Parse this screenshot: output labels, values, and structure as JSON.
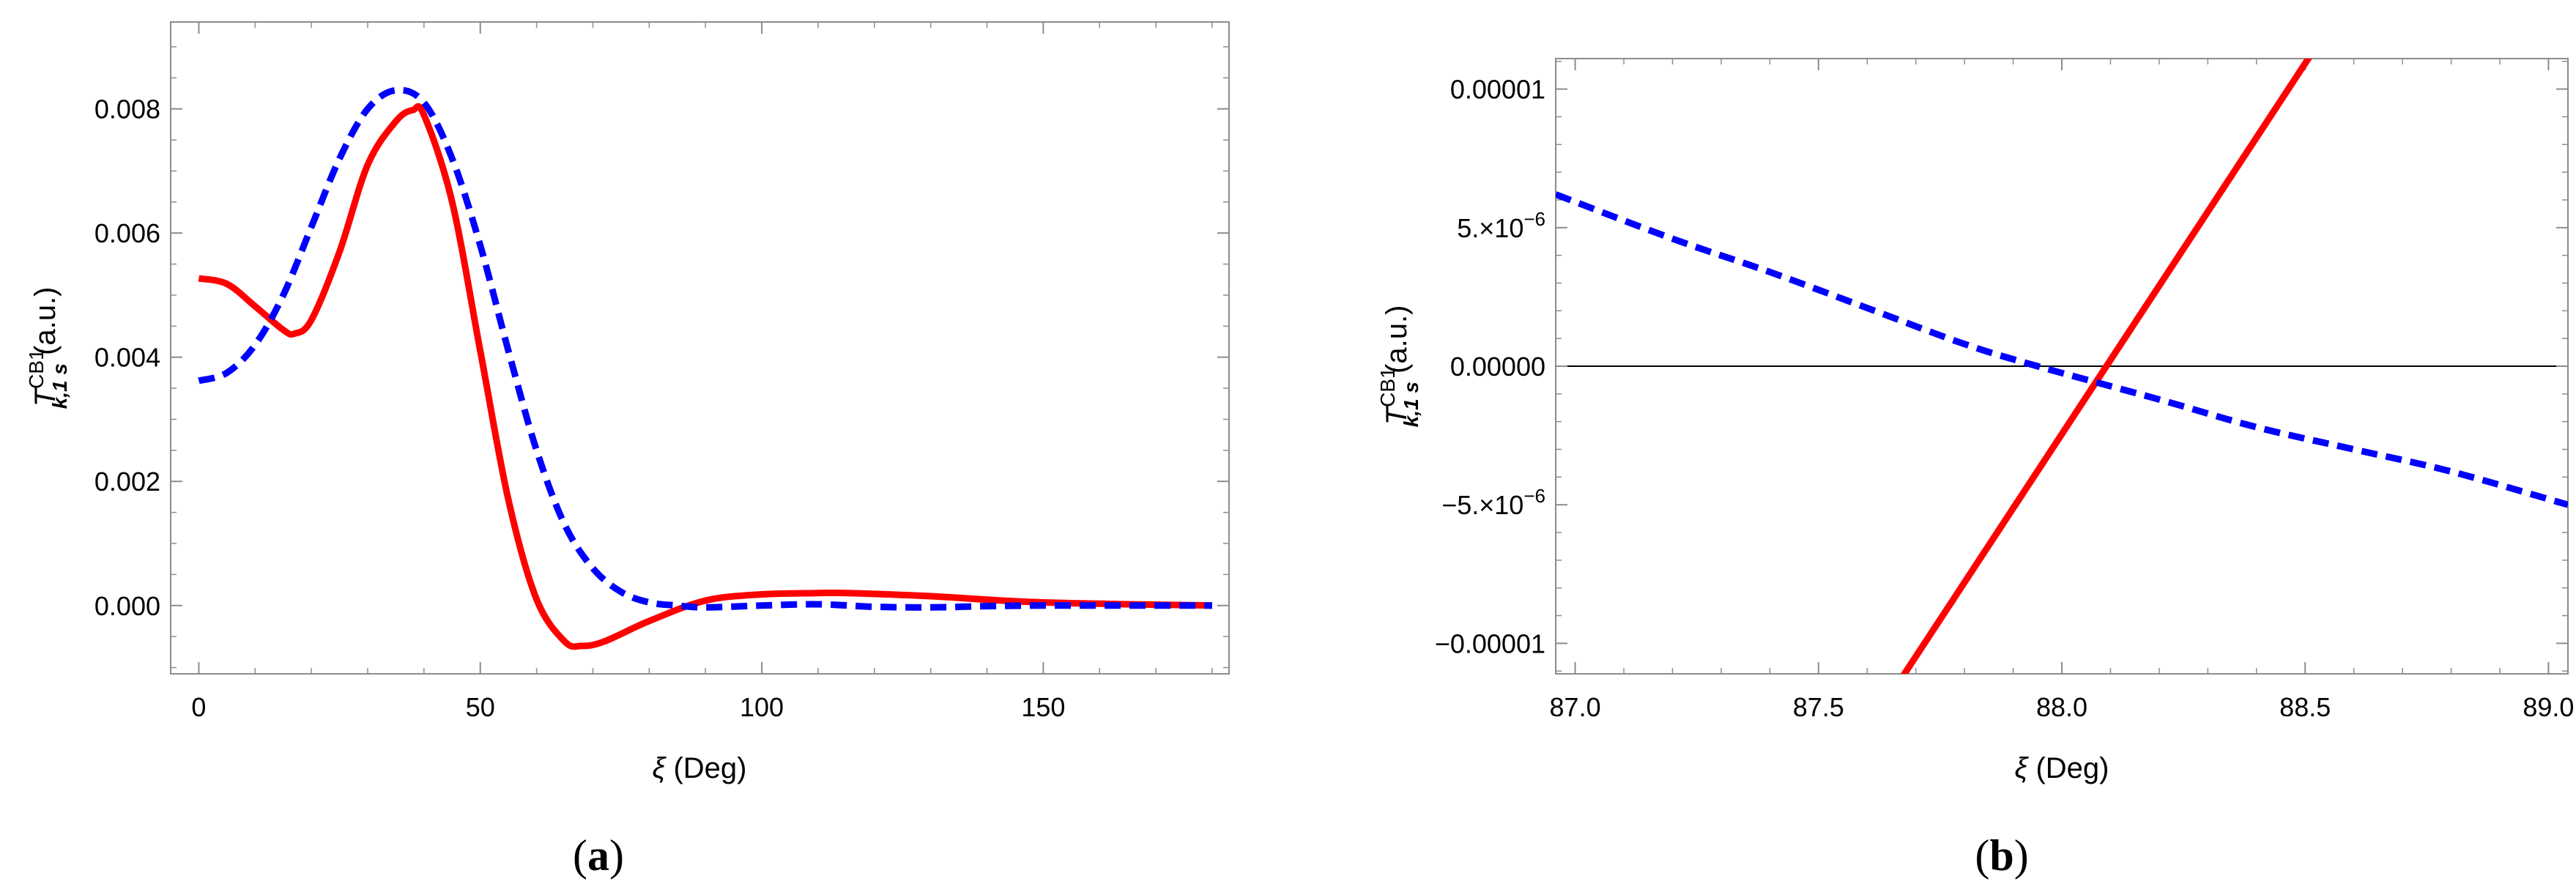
{
  "panels": [
    {
      "label_open": "(",
      "label_letter": "a",
      "label_close": ")",
      "xlabel_symbol": "ξ",
      "xlabel_unit": " (Deg)",
      "ylabel_T": "T",
      "ylabel_sub": "k,1 s",
      "ylabel_sup": "CB1",
      "ylabel_unit": " (a.u.)",
      "xticks": [
        {
          "value": 0,
          "label": "0"
        },
        {
          "value": 50,
          "label": "50"
        },
        {
          "value": 100,
          "label": "100"
        },
        {
          "value": 150,
          "label": "150"
        }
      ],
      "yticks": [
        {
          "value": 0.0,
          "label": "0.000"
        },
        {
          "value": 0.002,
          "label": "0.002"
        },
        {
          "value": 0.004,
          "label": "0.004"
        },
        {
          "value": 0.006,
          "label": "0.006"
        },
        {
          "value": 0.008,
          "label": "0.008"
        }
      ]
    },
    {
      "label_open": "(",
      "label_letter": "b",
      "label_close": ")",
      "xlabel_symbol": "ξ",
      "xlabel_unit": " (Deg)",
      "ylabel_T": "T",
      "ylabel_sub": "k,1 s",
      "ylabel_sup": "CB1",
      "ylabel_unit": " (a.u.)",
      "xticks": [
        {
          "value": 87.0,
          "label": "87.0"
        },
        {
          "value": 87.5,
          "label": "87.5"
        },
        {
          "value": 88.0,
          "label": "88.0"
        },
        {
          "value": 88.5,
          "label": "88.5"
        },
        {
          "value": 89.0,
          "label": "89.0"
        }
      ],
      "yticks": [
        {
          "value": -1e-05,
          "label": "−0.00001"
        },
        {
          "value": -5e-06,
          "label": "−5.×10",
          "exp": "−6"
        },
        {
          "value": 0.0,
          "label": "0.00000"
        },
        {
          "value": 5e-06,
          "label": "5.×10",
          "exp": "−6"
        },
        {
          "value": 1e-05,
          "label": "0.00001"
        }
      ]
    }
  ],
  "chart_data": [
    {
      "type": "line",
      "xlim": [
        -5,
        183
      ],
      "ylim": [
        -0.0011,
        0.0094
      ],
      "grid": false,
      "series": [
        {
          "color": "#ff0000",
          "dash": "solid",
          "x": [
            0,
            5,
            10,
            15,
            17,
            20,
            25,
            30,
            35,
            38,
            40,
            45,
            50,
            55,
            60,
            65,
            68,
            72,
            80,
            90,
            100,
            110,
            115,
            130,
            150,
            180
          ],
          "y": [
            0.00527,
            0.00518,
            0.00482,
            0.00444,
            0.00438,
            0.0046,
            0.0057,
            0.0071,
            0.0078,
            0.00798,
            0.0079,
            0.0065,
            0.0041,
            0.0017,
            0.0001,
            -0.00058,
            -0.00065,
            -0.00058,
            -0.00025,
            8e-05,
            0.00018,
            0.0002,
            0.0002,
            0.00015,
            5e-05,
            0.0
          ]
        },
        {
          "color": "#0000ff",
          "dash": "dashed",
          "x": [
            0,
            5,
            10,
            15,
            20,
            25,
            30,
            35,
            40,
            45,
            50,
            55,
            60,
            65,
            70,
            75,
            80,
            85,
            90,
            100,
            110,
            120,
            130,
            140,
            150,
            165,
            180
          ],
          "y": [
            0.00362,
            0.00375,
            0.0042,
            0.005,
            0.0061,
            0.0072,
            0.008,
            0.0083,
            0.0081,
            0.0072,
            0.0058,
            0.0041,
            0.0025,
            0.0013,
            0.0006,
            0.00022,
            5e-05,
            0.0,
            -3e-05,
            0.0,
            2e-05,
            -2e-05,
            -3e-05,
            -1e-05,
            0.0,
            0.0,
            0.0
          ]
        }
      ]
    },
    {
      "type": "line",
      "xlim": [
        86.96,
        89.04
      ],
      "ylim": [
        -1.11e-05,
        1.11e-05
      ],
      "grid": false,
      "zero_line": true,
      "series": [
        {
          "color": "#ff0000",
          "dash": "solid",
          "x": [
            87.4,
            88.6
          ],
          "y": [
            -1.85e-05,
            1.36e-05
          ]
        },
        {
          "color": "#0000ff",
          "dash": "dashed",
          "x": [
            86.96,
            87.2,
            87.4,
            87.6,
            87.8,
            87.95,
            88.2,
            88.4,
            88.6,
            88.8,
            89.04
          ],
          "y": [
            6.2e-06,
            4.6e-06,
            3.4e-06,
            2.1e-06,
            8e-07,
            0.0,
            -1.2e-06,
            -2.2e-06,
            -3e-06,
            -3.8e-06,
            -5e-06
          ]
        }
      ]
    }
  ]
}
